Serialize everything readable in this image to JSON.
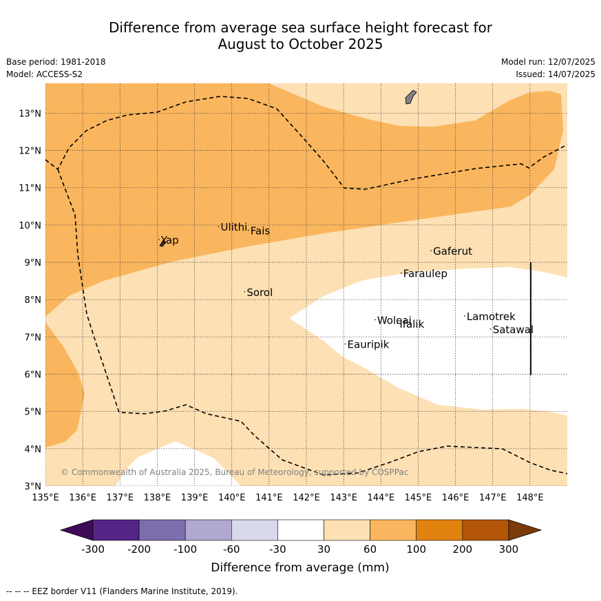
{
  "title_line1": "Difference from average sea surface height forecast for",
  "title_line2": "August to October 2025",
  "meta": {
    "base_period": "Base period: 1981-2018",
    "model": "Model: ACCESS-S2",
    "model_run": "Model run: 12/07/2025",
    "issued": "Issued: 14/07/2025"
  },
  "copyright": "© Commonwealth of Australia 2025, Bureau of Meteorology, supported by COSPPac",
  "footer": "--  --  -- EEZ border V11 (Flanders Marine Institute, 2019).",
  "colors": {
    "band_30_60": "#fde0b4",
    "band_60_100": "#fab65e",
    "neutral": "#ffffff"
  },
  "chart_data": {
    "type": "map",
    "lon_range": [
      135,
      149
    ],
    "lat_range": [
      3,
      13.8
    ],
    "x_ticks": [
      "135°E",
      "136°E",
      "137°E",
      "138°E",
      "139°E",
      "140°E",
      "141°E",
      "142°E",
      "143°E",
      "144°E",
      "145°E",
      "146°E",
      "147°E",
      "148°E"
    ],
    "y_ticks": [
      "3°N",
      "4°N",
      "5°N",
      "6°N",
      "7°N",
      "8°N",
      "9°N",
      "10°N",
      "11°N",
      "12°N",
      "13°N"
    ],
    "grid": true,
    "places": [
      {
        "name": "Yap",
        "lon": 138.1,
        "lat": 9.5
      },
      {
        "name": "Ulithi",
        "lon": 139.7,
        "lat": 9.85
      },
      {
        "name": "Fais",
        "lon": 140.5,
        "lat": 9.75
      },
      {
        "name": "Sorol",
        "lon": 140.4,
        "lat": 8.1
      },
      {
        "name": "Gaferut",
        "lon": 145.4,
        "lat": 9.2
      },
      {
        "name": "Faraulep",
        "lon": 144.6,
        "lat": 8.6
      },
      {
        "name": "Woleai",
        "lon": 143.9,
        "lat": 7.35
      },
      {
        "name": "Ifalik",
        "lon": 144.5,
        "lat": 7.25
      },
      {
        "name": "Lamotrek",
        "lon": 146.3,
        "lat": 7.45
      },
      {
        "name": "Satawal",
        "lon": 147.0,
        "lat": 7.1
      },
      {
        "name": "Eauripik",
        "lon": 143.1,
        "lat": 6.7
      }
    ],
    "colorbar": {
      "label": "Difference from average (mm)",
      "ticks": [
        "-300",
        "-200",
        "-100",
        "-60",
        "-30",
        "30",
        "60",
        "100",
        "200",
        "300"
      ],
      "colors": [
        "#3f0a57",
        "#532585",
        "#7d6fad",
        "#b0a8d0",
        "#d9d9ec",
        "#ffffff",
        "#fde0b4",
        "#fab65e",
        "#e2820f",
        "#b25506",
        "#7a3a0a"
      ]
    }
  }
}
